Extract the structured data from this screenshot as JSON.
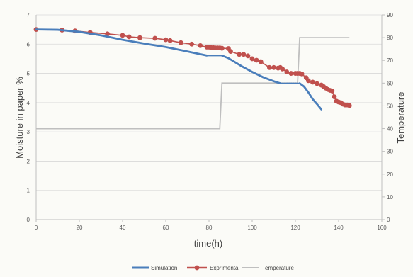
{
  "chart_data": {
    "type": "line",
    "xlabel": "time(h)",
    "ylabel": "Moisture in paper %",
    "y2label": "Temperature",
    "xlim": [
      0,
      160
    ],
    "ylim": [
      0,
      7
    ],
    "y2lim": [
      0,
      90
    ],
    "xticks": [
      0,
      20,
      40,
      60,
      80,
      100,
      120,
      140,
      160
    ],
    "yticks": [
      0,
      1,
      2,
      3,
      4,
      5,
      6,
      7
    ],
    "y2ticks": [
      0,
      10,
      20,
      30,
      40,
      50,
      60,
      70,
      80,
      90
    ],
    "grid": true,
    "legend_position": "bottom",
    "colors": {
      "simulation": "#4a7ebb",
      "experimental": "#c0504d",
      "temperature": "#bfbfbf"
    },
    "series": [
      {
        "name": "Simulation",
        "axis": "left",
        "style": "line",
        "x": [
          0,
          10,
          20,
          30,
          40,
          50,
          60,
          70,
          79
        ],
        "y": [
          6.5,
          6.49,
          6.42,
          6.3,
          6.15,
          6.02,
          5.9,
          5.75,
          5.61
        ],
        "segments": [
          {
            "x": [
              0,
              10,
              20,
              30,
              40,
              50,
              60,
              70,
              79
            ],
            "y": [
              6.5,
              6.49,
              6.42,
              6.3,
              6.15,
              6.02,
              5.9,
              5.75,
              5.61
            ],
            "dashed": false
          },
          {
            "x": [
              79,
              86
            ],
            "y": [
              5.61,
              5.61
            ],
            "dashed": true
          },
          {
            "x": [
              86,
              89,
              95,
              100,
              105,
              110,
              113
            ],
            "y": [
              5.61,
              5.52,
              5.25,
              5.05,
              4.87,
              4.73,
              4.66
            ],
            "dashed": false
          },
          {
            "x": [
              113,
              122
            ],
            "y": [
              4.66,
              4.66
            ],
            "dashed": true
          },
          {
            "x": [
              122,
              124,
              126,
              128,
              130,
              132
            ],
            "y": [
              4.66,
              4.55,
              4.35,
              4.12,
              3.95,
              3.77
            ],
            "dashed": false
          }
        ]
      },
      {
        "name": "Exprimental",
        "axis": "left",
        "style": "marker-line",
        "x": [
          0,
          12,
          18,
          25,
          33,
          40,
          43,
          48,
          55,
          60,
          62,
          67,
          72,
          76,
          79,
          80,
          81,
          82,
          83,
          84,
          85,
          86,
          89,
          90,
          94,
          96,
          98,
          100,
          102,
          104,
          108,
          110,
          112,
          113,
          114,
          116,
          118,
          120,
          121,
          122,
          123,
          125,
          126,
          128,
          130,
          132,
          133,
          134,
          135,
          136,
          137,
          138,
          139,
          140,
          141,
          142,
          143,
          144,
          145
        ],
        "y": [
          6.5,
          6.48,
          6.45,
          6.4,
          6.35,
          6.3,
          6.25,
          6.22,
          6.2,
          6.15,
          6.12,
          6.05,
          6.0,
          5.95,
          5.9,
          5.9,
          5.88,
          5.88,
          5.87,
          5.87,
          5.87,
          5.86,
          5.85,
          5.75,
          5.65,
          5.65,
          5.6,
          5.5,
          5.45,
          5.4,
          5.2,
          5.2,
          5.18,
          5.2,
          5.15,
          5.05,
          5.0,
          5.0,
          5.0,
          5.0,
          4.98,
          4.85,
          4.75,
          4.7,
          4.65,
          4.6,
          4.55,
          4.5,
          4.45,
          4.42,
          4.4,
          4.2,
          4.05,
          4.02,
          4.0,
          3.95,
          3.92,
          3.92,
          3.9
        ]
      },
      {
        "name": "Temperature",
        "axis": "right",
        "style": "line",
        "x": [
          0,
          85,
          86,
          121,
          122,
          145
        ],
        "y": [
          40,
          40,
          60,
          60,
          80,
          80
        ]
      }
    ]
  }
}
